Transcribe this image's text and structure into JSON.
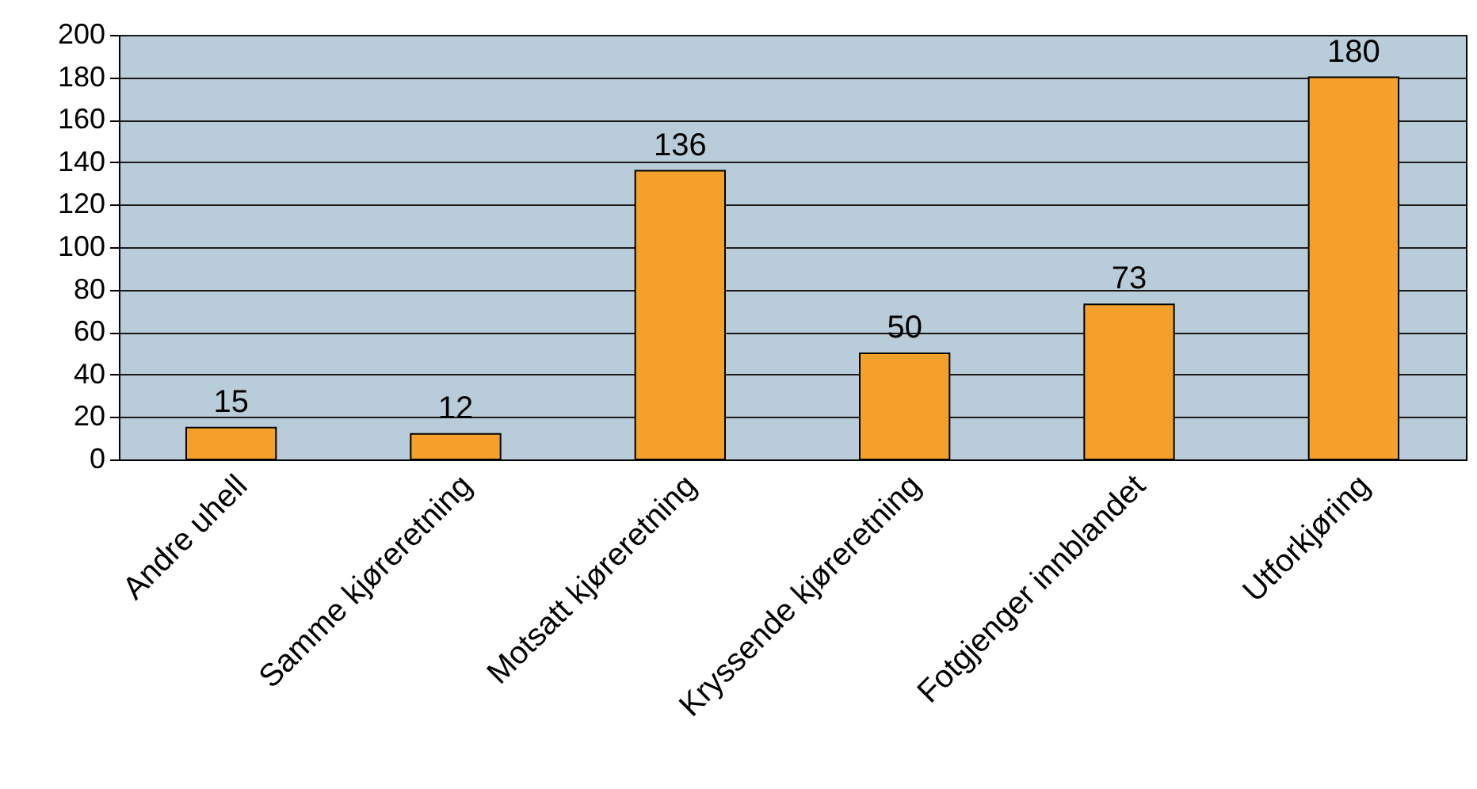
{
  "chart_data": {
    "type": "bar",
    "categories": [
      "Andre uhell",
      "Samme kjøreretning",
      "Motsatt kjøreretning",
      "Kryssende kjøreretning",
      "Fotgjenger innblandet",
      "Utforkjøring"
    ],
    "values": [
      15,
      12,
      136,
      50,
      73,
      180
    ],
    "color": "#f5a02a",
    "ylim": [
      0,
      200
    ],
    "yticks": [
      0,
      20,
      40,
      60,
      80,
      100,
      120,
      140,
      160,
      180,
      200
    ],
    "grid": "y",
    "data_labels": true
  }
}
